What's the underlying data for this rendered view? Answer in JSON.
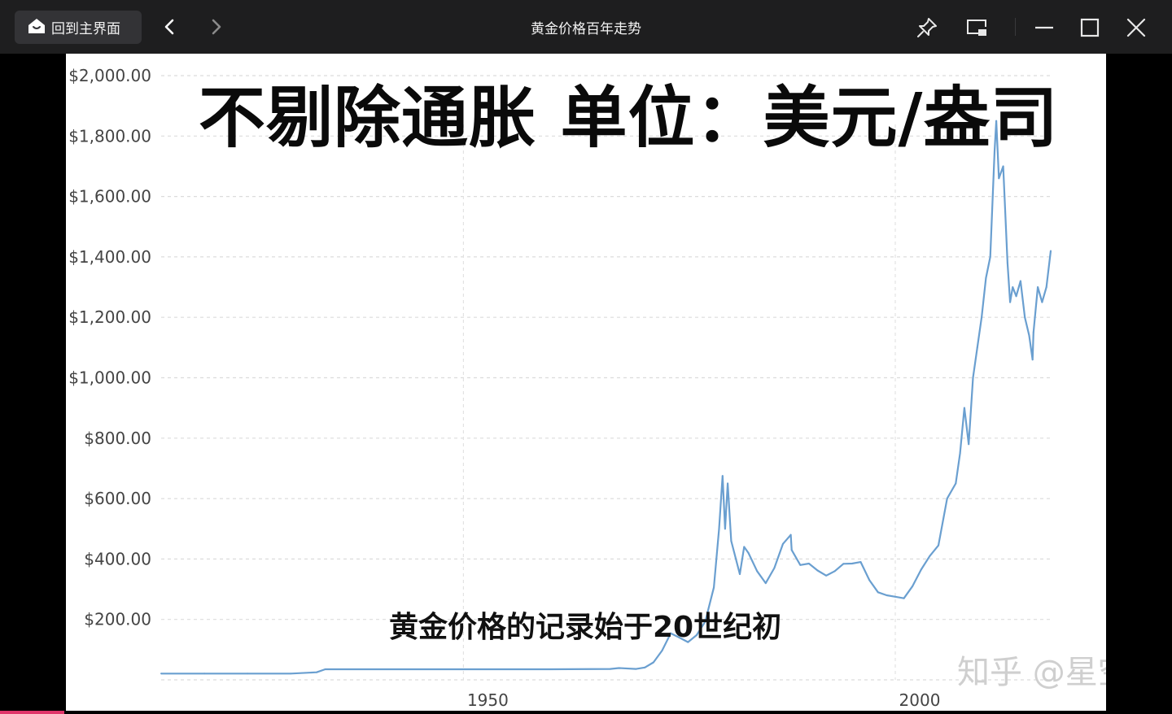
{
  "window": {
    "home_label": "回到主界面",
    "title": "黄金价格百年走势",
    "icons": [
      "home-icon",
      "back-icon",
      "forward-icon",
      "pin-icon",
      "picture-in-picture-icon",
      "minimize-icon",
      "maximize-icon",
      "close-icon"
    ]
  },
  "video": {
    "overlay_title": "不剔除通胀 单位：美元/盎司",
    "subtitle": "黄金价格的记录始于20世纪初",
    "watermark": "知乎 @星空",
    "progress_fraction": 0.055
  },
  "chart_data": {
    "type": "line",
    "title": "",
    "xlabel": "",
    "ylabel": "",
    "series_color": "#6a9fd0",
    "grid": true,
    "ylim": [
      0,
      2000
    ],
    "xlim": [
      1915,
      2018
    ],
    "y_ticks": [
      "$200.00",
      "$400.00",
      "$600.00",
      "$800.00",
      "$1,000.00",
      "$1,200.00",
      "$1,400.00",
      "$1,600.00",
      "$1,800.00",
      "$2,000.00"
    ],
    "x_ticks": [
      "1950",
      "2000"
    ],
    "x": [
      1915,
      1920,
      1925,
      1930,
      1933,
      1934,
      1940,
      1950,
      1960,
      1967,
      1968,
      1970,
      1971,
      1972,
      1973,
      1974,
      1975,
      1976,
      1977,
      1978,
      1979,
      1979.6,
      1980.0,
      1980.3,
      1980.6,
      1981,
      1982,
      1982.5,
      1983,
      1984,
      1985,
      1986,
      1987,
      1987.9,
      1988,
      1989,
      1990,
      1991,
      1992,
      1993,
      1994,
      1995,
      1996,
      1997,
      1998,
      1999,
      2000,
      2001,
      2002,
      2003,
      2004,
      2005,
      2006,
      2007,
      2007.5,
      2008,
      2008.5,
      2009,
      2009.5,
      2010,
      2010.5,
      2011,
      2011.5,
      2011.7,
      2012,
      2012.5,
      2013,
      2013.3,
      2013.6,
      2014,
      2014.5,
      2015,
      2015.5,
      2015.9,
      2016,
      2016.5,
      2017,
      2017.5,
      2018
    ],
    "y": [
      20.67,
      20.67,
      20.67,
      20.67,
      25,
      35,
      35,
      35,
      35,
      36,
      39,
      36,
      41,
      58,
      97,
      154,
      140,
      125,
      148,
      193,
      306,
      500,
      675,
      500,
      650,
      460,
      350,
      440,
      420,
      360,
      320,
      370,
      450,
      480,
      430,
      380,
      385,
      362,
      345,
      360,
      384,
      385,
      390,
      330,
      290,
      280,
      275,
      270,
      310,
      365,
      410,
      445,
      600,
      650,
      750,
      900,
      780,
      1000,
      1100,
      1200,
      1330,
      1400,
      1750,
      1850,
      1660,
      1700,
      1380,
      1250,
      1300,
      1270,
      1320,
      1200,
      1140,
      1060,
      1150,
      1300,
      1250,
      1300,
      1420
    ]
  }
}
